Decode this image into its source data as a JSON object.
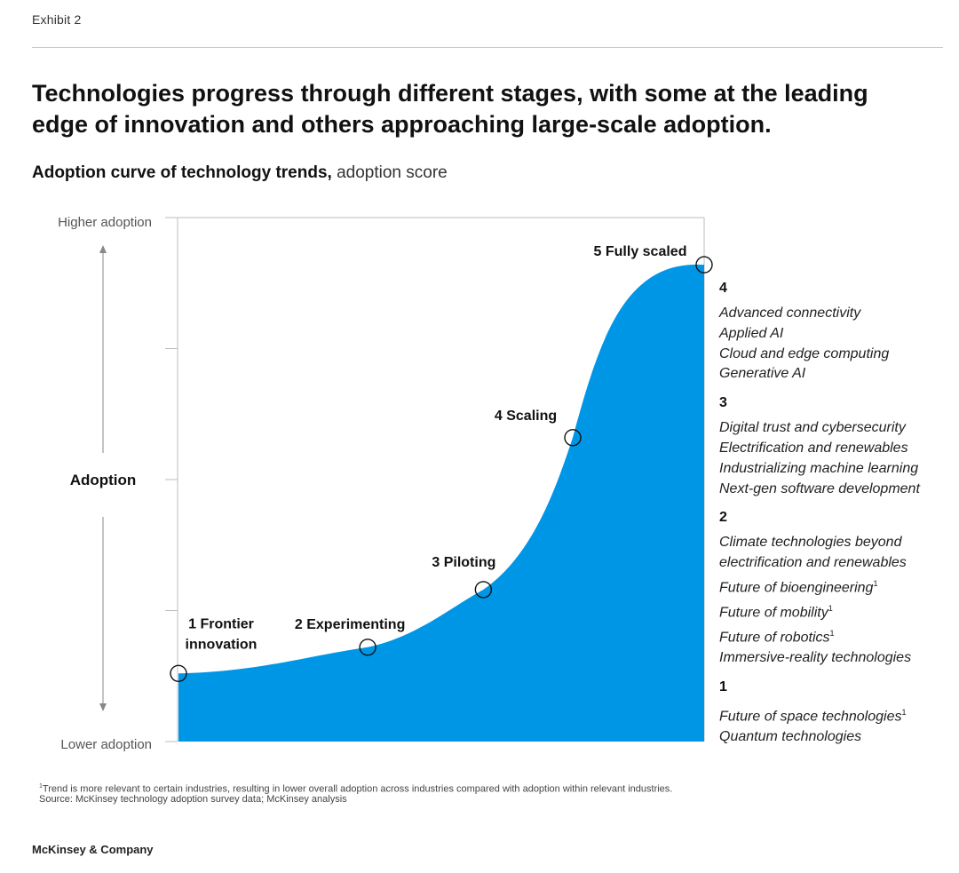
{
  "exhibit_label": "Exhibit 2",
  "headline": "Technologies progress through different stages, with some at the leading edge of innovation and others approaching large-scale adoption.",
  "colors": {
    "curve_fill": "#0096e6",
    "axis": "#bdbdbd",
    "text": "#111111"
  },
  "chart_data": {
    "type": "area",
    "title": "Adoption curve of technology trends,",
    "title_unit": "adoption score",
    "y_axis": {
      "top_label": "Higher adoption",
      "middle_label": "Adoption",
      "bottom_label": "Lower adoption",
      "range": [
        0,
        1
      ],
      "ticks": 5
    },
    "stages": [
      {
        "label_lines": [
          "1 Frontier",
          "innovation"
        ],
        "x": 0.0,
        "y": 0.13
      },
      {
        "label_lines": [
          "2 Experimenting"
        ],
        "x": 0.36,
        "y": 0.18
      },
      {
        "label_lines": [
          "3 Piloting"
        ],
        "x": 0.58,
        "y": 0.29
      },
      {
        "label_lines": [
          "4 Scaling"
        ],
        "x": 0.75,
        "y": 0.58
      },
      {
        "label_lines": [
          "5 Fully scaled"
        ],
        "x": 1.0,
        "y": 0.91
      }
    ]
  },
  "legend": [
    {
      "number": "4",
      "items": [
        {
          "text": "Advanced connectivity",
          "note": ""
        },
        {
          "text": "Applied AI",
          "note": ""
        },
        {
          "text": "Cloud and edge computing",
          "note": ""
        },
        {
          "text": "Generative AI",
          "note": ""
        }
      ]
    },
    {
      "number": "3",
      "items": [
        {
          "text": "Digital trust and cybersecurity",
          "note": ""
        },
        {
          "text": "Electrification and renewables",
          "note": ""
        },
        {
          "text": "Industrializing machine learning",
          "note": ""
        },
        {
          "text": "Next-gen software development",
          "note": ""
        }
      ]
    },
    {
      "number": "2",
      "items": [
        {
          "text": "Climate technologies beyond",
          "note": ""
        },
        {
          "text": "electrification and renewables",
          "note": ""
        },
        {
          "text": "Future of bioengineering",
          "note": "1"
        },
        {
          "text": "Future of mobility",
          "note": "1"
        },
        {
          "text": "Future of robotics",
          "note": "1"
        },
        {
          "text": "Immersive-reality technologies",
          "note": ""
        }
      ]
    },
    {
      "number": "1",
      "items": [
        {
          "text": "Future of space technologies",
          "note": "1"
        },
        {
          "text": "Quantum technologies",
          "note": ""
        }
      ]
    }
  ],
  "footnote_marker": "1",
  "footnote": "Trend is more relevant to certain industries, resulting in lower overall adoption across industries compared with adoption within relevant industries.",
  "source": "Source: McKinsey technology adoption survey data; McKinsey analysis",
  "brand": "McKinsey & Company"
}
